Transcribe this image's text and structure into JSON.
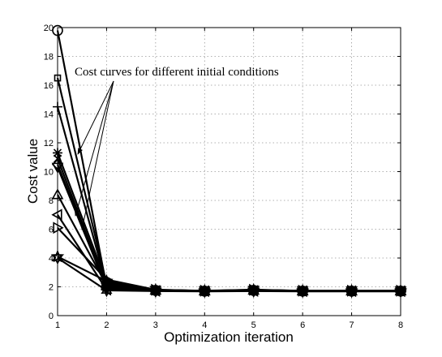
{
  "chart_data": {
    "type": "line",
    "title": "",
    "xlabel": "Optimization iteration",
    "ylabel": "Cost value",
    "xlim": [
      1,
      8
    ],
    "ylim": [
      0,
      20
    ],
    "grid": true,
    "x": [
      1,
      2,
      3,
      4,
      5,
      6,
      7,
      8
    ],
    "x_ticks": [
      "1",
      "2",
      "3",
      "4",
      "5",
      "6",
      "7",
      "8"
    ],
    "y_ticks": [
      "0",
      "2",
      "4",
      "6",
      "8",
      "10",
      "12",
      "14",
      "16",
      "18",
      "20"
    ],
    "annotation": "Cost curves for different initial conditions",
    "series": [
      {
        "marker": "circle",
        "values": [
          19.8,
          2.0,
          1.75,
          1.7,
          1.75,
          1.7,
          1.7,
          1.7
        ]
      },
      {
        "marker": "square",
        "values": [
          16.5,
          2.2,
          1.78,
          1.72,
          1.78,
          1.72,
          1.72,
          1.72
        ]
      },
      {
        "marker": "plus",
        "values": [
          14.5,
          2.1,
          1.76,
          1.7,
          1.76,
          1.7,
          1.7,
          1.7
        ]
      },
      {
        "marker": "asterisk",
        "values": [
          11.3,
          2.3,
          1.8,
          1.72,
          1.8,
          1.72,
          1.72,
          1.72
        ]
      },
      {
        "marker": "x",
        "values": [
          10.9,
          2.0,
          1.74,
          1.7,
          1.74,
          1.7,
          1.7,
          1.7
        ]
      },
      {
        "marker": "diamond",
        "values": [
          10.5,
          1.9,
          1.73,
          1.7,
          1.73,
          1.7,
          1.7,
          1.7
        ]
      },
      {
        "marker": "triangle-down",
        "values": [
          10.3,
          1.95,
          1.75,
          1.71,
          1.75,
          1.71,
          1.71,
          1.71
        ]
      },
      {
        "marker": "triangle-up",
        "values": [
          8.4,
          2.1,
          1.77,
          1.72,
          1.77,
          1.72,
          1.72,
          1.72
        ]
      },
      {
        "marker": "triangle-left",
        "values": [
          7.0,
          1.8,
          1.72,
          1.7,
          1.72,
          1.7,
          1.7,
          1.7
        ]
      },
      {
        "marker": "triangle-right",
        "values": [
          6.1,
          2.5,
          1.8,
          1.73,
          1.8,
          1.73,
          1.73,
          1.73
        ]
      },
      {
        "marker": "pentagram",
        "values": [
          4.1,
          2.4,
          1.78,
          1.72,
          1.78,
          1.72,
          1.72,
          1.72
        ]
      },
      {
        "marker": "hexagram",
        "values": [
          4.0,
          1.75,
          1.7,
          1.68,
          1.7,
          1.68,
          1.68,
          1.68
        ]
      }
    ]
  }
}
